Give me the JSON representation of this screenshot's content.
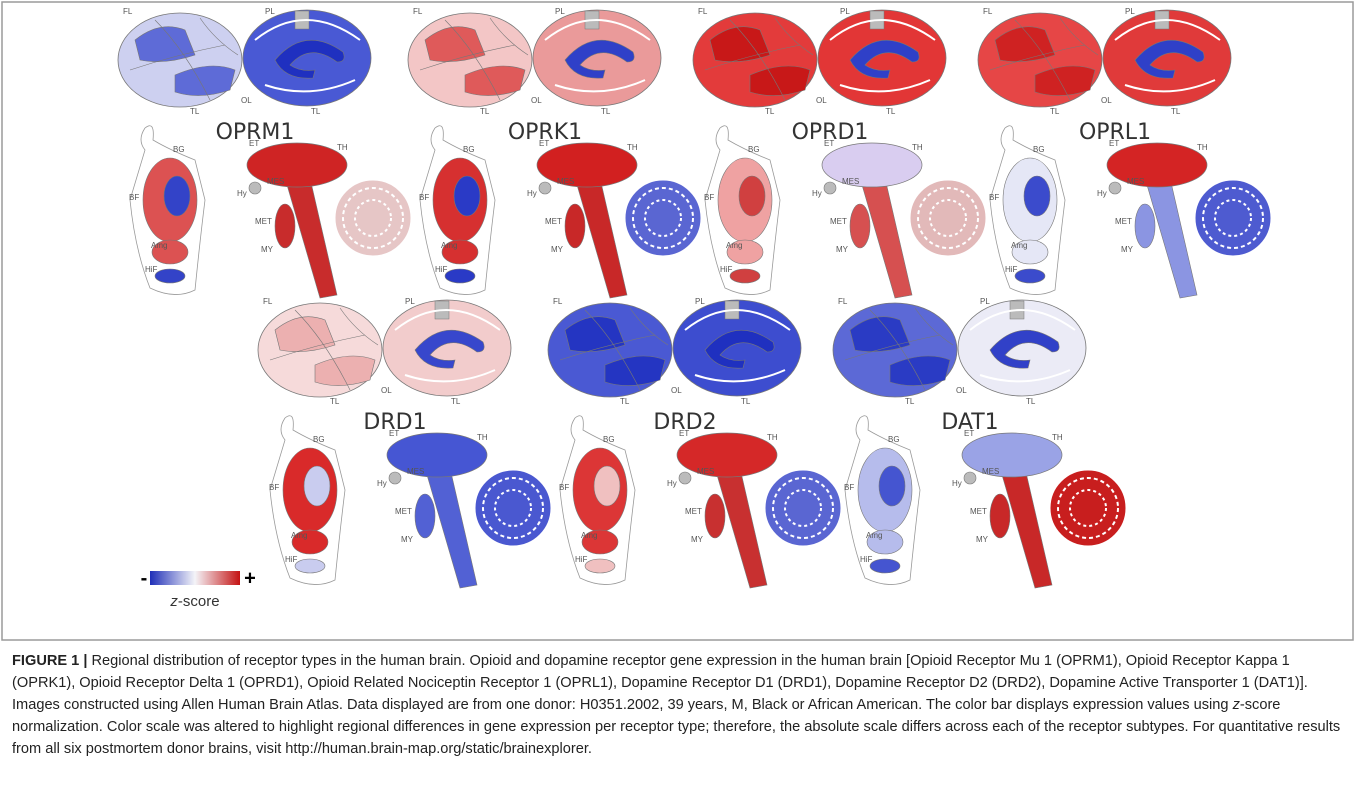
{
  "figure": {
    "panels": [
      {
        "gene": "OPRM1"
      },
      {
        "gene": "OPRK1"
      },
      {
        "gene": "OPRD1"
      },
      {
        "gene": "OPRL1"
      },
      {
        "gene": "DRD1"
      },
      {
        "gene": "DRD2"
      },
      {
        "gene": "DAT1"
      }
    ],
    "region_labels": {
      "lateral": [
        "FL",
        "TL"
      ],
      "medial": [
        "PL",
        "OL",
        "TL"
      ],
      "coronal": [
        "BG",
        "BF",
        "Amg",
        "HiF"
      ],
      "sagittal": [
        "ET",
        "TH",
        "Hy",
        "MES",
        "MET",
        "MY"
      ]
    },
    "colorbar": {
      "min_label": "-",
      "max_label": "+",
      "title_var": "z",
      "title_rest": "-score"
    }
  },
  "caption": {
    "label": "FIGURE 1 |",
    "segments": [
      "Regional distribution of receptor types in the human brain. Opioid and dopamine receptor gene expression in the human brain [Opioid Receptor Mu 1 (OPRM1), Opioid Receptor Kappa 1 (OPRK1), Opioid Receptor Delta 1 (OPRD1), Opioid Related Nociceptin Receptor 1 (OPRL1), Dopamine Receptor D1 (DRD1), Dopamine Receptor D2 (DRD2), Dopamine Active Transporter 1 (DAT1)]. Images constructed using Allen Human Brain Atlas. Data displayed are from one donor: H0351.2002, 39 years, M, Black or African American. The color bar displays expression values using ",
      "z",
      "-score normalization. Color scale was altered to highlight regional differences in gene expression per receptor type; therefore, the absolute scale differs across each of the receptor subtypes. For quantitative results from all six postmortem donor brains, visit http://human.brain-map.org/static/brainexplorer."
    ]
  }
}
